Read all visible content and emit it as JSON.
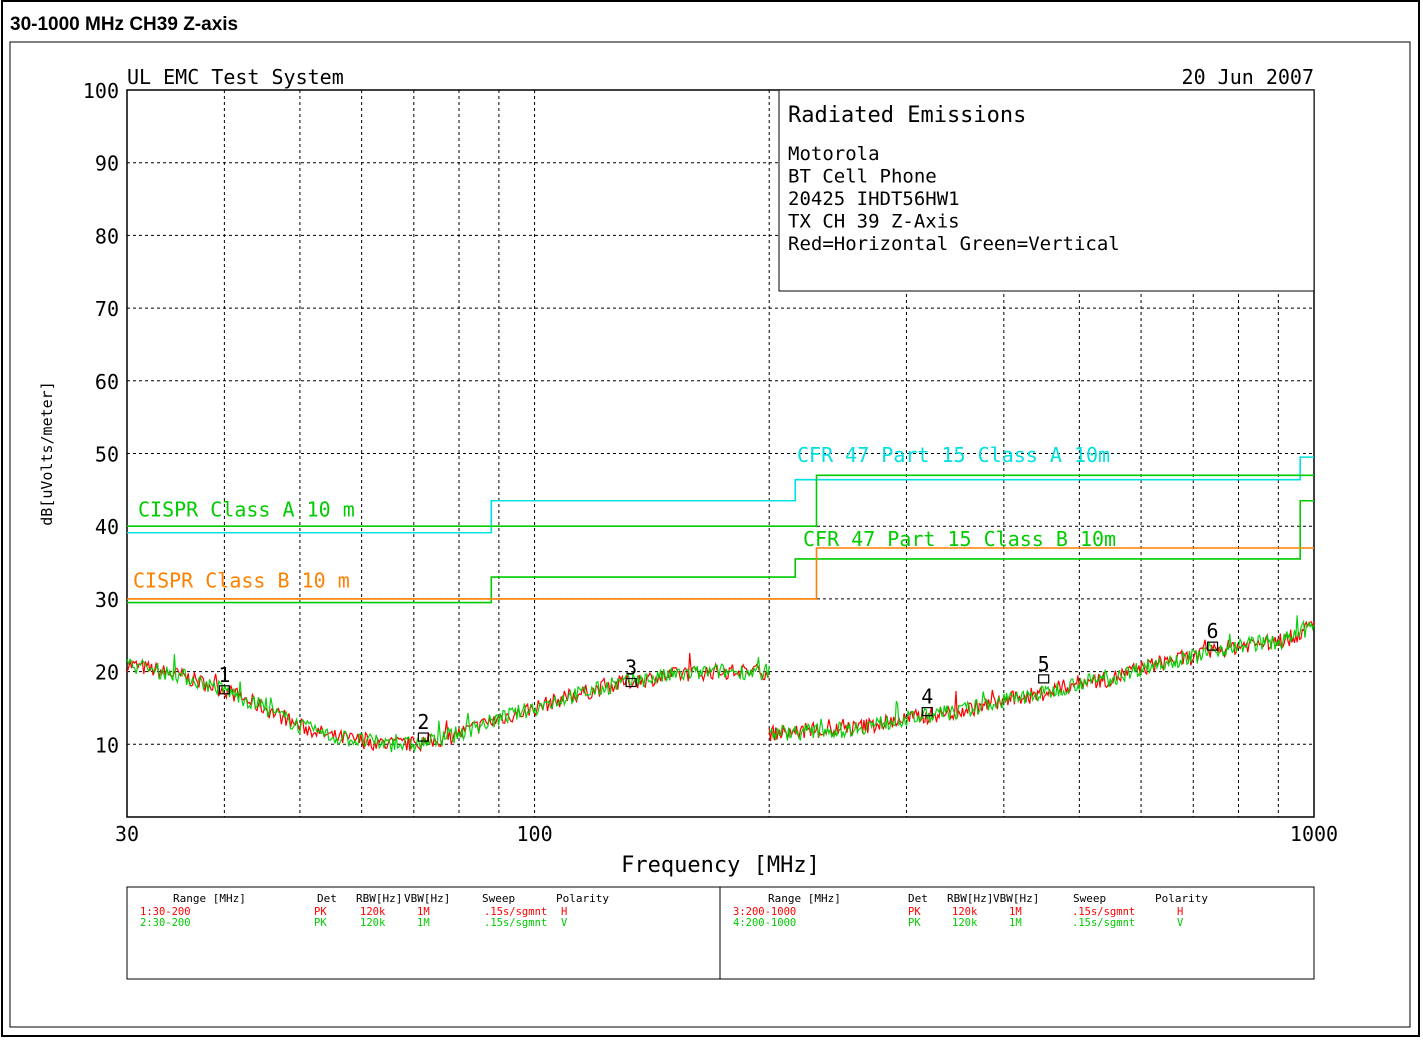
{
  "page_title": "30-1000 MHz CH39 Z-axis",
  "header": {
    "system": "UL EMC Test System",
    "date": "20 Jun 2007"
  },
  "info_box": {
    "title": "Radiated Emissions",
    "lines": [
      "Motorola",
      "BT Cell Phone",
      "20425     IHDT56HW1",
      "TX CH 39   Z-Axis",
      "Red=Horizontal   Green=Vertical"
    ]
  },
  "colors": {
    "horizontal": "#ff0000",
    "vertical": "#00dd00",
    "cfr_a": "#00e0e0",
    "cispr_b": "#ff8000",
    "limit_green": "#00cc00",
    "grid": "#000000"
  },
  "legend_table": {
    "left_headers": {
      "range": "Range [MHz]",
      "det": "Det",
      "rbw": "RBW[Hz]",
      "vbw": "VBW[Hz]",
      "sweep": "Sweep",
      "polarity": "Polarity"
    },
    "left_rows": [
      {
        "range": "1:30-200",
        "det": "PK",
        "rbw": "120k",
        "vbw": "1M",
        "sweep": ".15s/sgmnt",
        "polarity": "H",
        "color": "#ff0000"
      },
      {
        "range": "2:30-200",
        "det": "PK",
        "rbw": "120k",
        "vbw": "1M",
        "sweep": ".15s/sgmnt",
        "polarity": "V",
        "color": "#00cc00"
      }
    ],
    "right_headers": {
      "range": "Range [MHz]",
      "det": "Det",
      "rbw": "RBW[Hz]",
      "vbw": "VBW[Hz]",
      "sweep": "Sweep",
      "polarity": "Polarity"
    },
    "right_rows": [
      {
        "range": "3:200-1000",
        "det": "PK",
        "rbw": "120k",
        "vbw": "1M",
        "sweep": ".15s/sgmnt",
        "polarity": "H",
        "color": "#ff0000"
      },
      {
        "range": "4:200-1000",
        "det": "PK",
        "rbw": "120k",
        "vbw": "1M",
        "sweep": ".15s/sgmnt",
        "polarity": "V",
        "color": "#00cc00"
      }
    ]
  },
  "chart_data": {
    "type": "line",
    "xlabel": "Frequency [MHz]",
    "ylabel": "dB[uVolts/meter]",
    "xscale": "log",
    "xlim": [
      30,
      1000
    ],
    "ylim": [
      0,
      100
    ],
    "x_tick_labels": [
      {
        "x": 30,
        "label": "30"
      },
      {
        "x": 100,
        "label": "100"
      },
      {
        "x": 1000,
        "label": "1000"
      }
    ],
    "x_grid": [
      40,
      50,
      60,
      70,
      80,
      90,
      200,
      300,
      400,
      500,
      600,
      700,
      800,
      900
    ],
    "y_ticks": [
      10,
      20,
      30,
      40,
      50,
      60,
      70,
      80,
      90,
      100
    ],
    "grid": true,
    "limit_lines": [
      {
        "name": "CFR 47 Part 15  Class A 10m",
        "color": "#00e0e0",
        "points": [
          [
            30,
            39.1
          ],
          [
            88,
            39.1
          ],
          [
            88,
            43.5
          ],
          [
            216,
            43.5
          ],
          [
            216,
            46.4
          ],
          [
            960,
            46.4
          ],
          [
            960,
            49.5
          ],
          [
            1000,
            49.5
          ]
        ]
      },
      {
        "name": "CISPR Class A 10 m",
        "color": "#00cc00",
        "points": [
          [
            30,
            40
          ],
          [
            230,
            40
          ],
          [
            230,
            47
          ],
          [
            1000,
            47
          ]
        ]
      },
      {
        "name": "CFR 47 Part 15  Class B 10m",
        "color": "#00cc00",
        "points": [
          [
            30,
            29.5
          ],
          [
            88,
            29.5
          ],
          [
            88,
            33
          ],
          [
            216,
            33
          ],
          [
            216,
            35.5
          ],
          [
            960,
            35.5
          ],
          [
            960,
            43.5
          ],
          [
            1000,
            43.5
          ]
        ]
      },
      {
        "name": "CISPR Class B 10 m",
        "color": "#ff8000",
        "points": [
          [
            30,
            30
          ],
          [
            230,
            30
          ],
          [
            230,
            37
          ],
          [
            1000,
            37
          ]
        ]
      }
    ],
    "series": [
      {
        "name": "1:30-200 H",
        "color": "#ff0000",
        "x": [
          30,
          35,
          40,
          45,
          50,
          55,
          60,
          65,
          70,
          75,
          80,
          90,
          100,
          110,
          120,
          130,
          140,
          150,
          170,
          200
        ],
        "y": [
          21,
          19.5,
          17.5,
          15,
          12.5,
          11,
          10.5,
          10,
          10,
          10.5,
          11.5,
          13.5,
          15,
          16.5,
          17.5,
          18.5,
          19,
          19.5,
          20,
          20
        ]
      },
      {
        "name": "2:30-200 V",
        "color": "#00cc00",
        "x": [
          30,
          35,
          40,
          45,
          50,
          55,
          60,
          65,
          70,
          75,
          80,
          90,
          100,
          110,
          120,
          130,
          140,
          150,
          170,
          200
        ],
        "y": [
          21,
          19.5,
          17.5,
          15,
          12.5,
          11,
          10.5,
          10,
          10,
          10.5,
          11.5,
          13.5,
          15,
          16.5,
          17.5,
          18.5,
          19,
          19.5,
          20,
          20
        ]
      },
      {
        "name": "3:200-1000 H",
        "color": "#ff0000",
        "x": [
          200,
          250,
          300,
          350,
          400,
          450,
          500,
          550,
          600,
          650,
          700,
          750,
          800,
          850,
          900,
          950,
          1000
        ],
        "y": [
          11.5,
          12,
          13.5,
          14.5,
          16,
          17,
          18.5,
          19,
          20.5,
          21.5,
          22,
          23,
          23.5,
          24,
          24,
          25,
          26.5
        ]
      },
      {
        "name": "4:200-1000 V",
        "color": "#00cc00",
        "x": [
          200,
          250,
          300,
          350,
          400,
          450,
          500,
          550,
          600,
          650,
          700,
          750,
          800,
          850,
          900,
          950,
          1000
        ],
        "y": [
          11.5,
          12,
          13.5,
          14.5,
          16,
          17,
          18.5,
          19,
          20.5,
          21.5,
          22,
          23,
          23.5,
          24,
          24,
          25,
          26.5
        ]
      }
    ],
    "markers": [
      {
        "label": "1",
        "x": 40,
        "y": 17.5
      },
      {
        "label": "2",
        "x": 72,
        "y": 11
      },
      {
        "label": "3",
        "x": 133,
        "y": 18.5
      },
      {
        "label": "4",
        "x": 319,
        "y": 14.5
      },
      {
        "label": "5",
        "x": 450,
        "y": 19
      },
      {
        "label": "6",
        "x": 741,
        "y": 23.5
      }
    ]
  }
}
